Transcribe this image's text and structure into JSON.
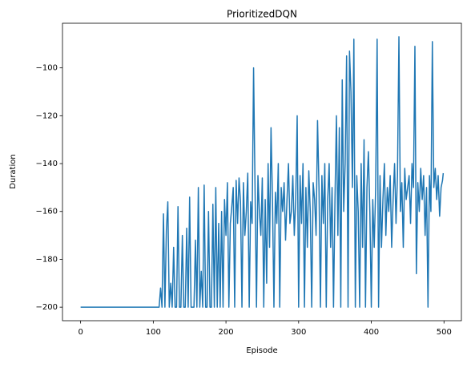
{
  "chart_data": {
    "type": "line",
    "title": "PrioritizedDQN",
    "x_label": "Episode",
    "y_label": "Duration",
    "xlim": [
      -24.95,
      523.95
    ],
    "ylim": [
      -205.65,
      -81.35
    ],
    "xticks": [
      0,
      100,
      200,
      300,
      400,
      500
    ],
    "yticks": [
      {
        "value": -200,
        "label": "−200"
      },
      {
        "value": -180,
        "label": "−180"
      },
      {
        "value": -160,
        "label": "−160"
      },
      {
        "value": -140,
        "label": "−140"
      },
      {
        "value": -120,
        "label": "−120"
      },
      {
        "value": -100,
        "label": "−100"
      }
    ],
    "x": [
      0,
      108,
      110,
      112,
      114,
      116,
      118,
      120,
      122,
      124,
      126,
      128,
      130,
      132,
      134,
      136,
      138,
      140,
      142,
      144,
      146,
      148,
      150,
      152,
      154,
      156,
      158,
      160,
      162,
      164,
      166,
      168,
      170,
      172,
      174,
      176,
      178,
      180,
      182,
      184,
      186,
      188,
      190,
      192,
      194,
      196,
      198,
      200,
      202,
      204,
      206,
      208,
      210,
      212,
      214,
      216,
      218,
      220,
      222,
      224,
      226,
      228,
      230,
      232,
      234,
      236,
      238,
      240,
      242,
      244,
      246,
      248,
      250,
      252,
      254,
      256,
      258,
      260,
      262,
      264,
      266,
      268,
      270,
      272,
      274,
      276,
      278,
      280,
      282,
      284,
      286,
      288,
      290,
      292,
      294,
      296,
      298,
      300,
      302,
      304,
      306,
      308,
      310,
      312,
      314,
      316,
      318,
      320,
      322,
      324,
      326,
      328,
      330,
      332,
      334,
      336,
      338,
      340,
      342,
      344,
      346,
      348,
      350,
      352,
      354,
      356,
      358,
      360,
      362,
      364,
      366,
      368,
      370,
      372,
      374,
      376,
      378,
      380,
      382,
      384,
      386,
      388,
      390,
      392,
      394,
      396,
      398,
      400,
      402,
      404,
      406,
      408,
      410,
      412,
      414,
      416,
      418,
      420,
      422,
      424,
      426,
      428,
      430,
      432,
      434,
      436,
      438,
      440,
      442,
      444,
      446,
      448,
      450,
      452,
      454,
      456,
      458,
      460,
      462,
      464,
      466,
      468,
      470,
      472,
      474,
      476,
      478,
      480,
      482,
      484,
      486,
      488,
      490,
      492,
      494,
      496,
      498,
      499
    ],
    "series": [
      {
        "name": "Duration",
        "color": "#1f77b4",
        "values": [
          -200,
          -200,
          -192,
          -200,
          -161,
          -200,
          -168,
          -156,
          -200,
          -190,
          -200,
          -175,
          -200,
          -200,
          -158,
          -200,
          -200,
          -170,
          -200,
          -200,
          -167,
          -200,
          -154,
          -200,
          -200,
          -200,
          -172,
          -200,
          -150,
          -200,
          -185,
          -200,
          -149,
          -200,
          -200,
          -160,
          -200,
          -200,
          -157,
          -200,
          -150,
          -200,
          -165,
          -200,
          -160,
          -200,
          -155,
          -170,
          -148,
          -200,
          -165,
          -158,
          -150,
          -200,
          -147,
          -165,
          -146,
          -156,
          -200,
          -148,
          -170,
          -160,
          -144,
          -200,
          -156,
          -165,
          -100,
          -150,
          -200,
          -145,
          -160,
          -170,
          -146,
          -200,
          -155,
          -190,
          -140,
          -175,
          -125,
          -155,
          -200,
          -152,
          -165,
          -140,
          -200,
          -150,
          -160,
          -148,
          -172,
          -155,
          -140,
          -165,
          -160,
          -145,
          -170,
          -155,
          -120,
          -200,
          -145,
          -165,
          -140,
          -200,
          -150,
          -175,
          -143,
          -160,
          -200,
          -148,
          -155,
          -170,
          -122,
          -150,
          -200,
          -145,
          -165,
          -140,
          -200,
          -155,
          -140,
          -175,
          -150,
          -200,
          -155,
          -120,
          -170,
          -125,
          -200,
          -105,
          -160,
          -140,
          -95,
          -200,
          -93,
          -110,
          -150,
          -88,
          -200,
          -145,
          -160,
          -200,
          -140,
          -175,
          -130,
          -200,
          -150,
          -135,
          -160,
          -200,
          -155,
          -175,
          -150,
          -88,
          -200,
          -145,
          -175,
          -155,
          -140,
          -170,
          -150,
          -160,
          -145,
          -175,
          -155,
          -140,
          -165,
          -145,
          -87,
          -160,
          -148,
          -175,
          -142,
          -155,
          -150,
          -145,
          -165,
          -140,
          -150,
          -91,
          -186,
          -148,
          -160,
          -142,
          -155,
          -145,
          -170,
          -150,
          -200,
          -145,
          -160,
          -89,
          -150,
          -142,
          -155,
          -145,
          -162,
          -150,
          -147,
          -144
        ]
      }
    ]
  }
}
